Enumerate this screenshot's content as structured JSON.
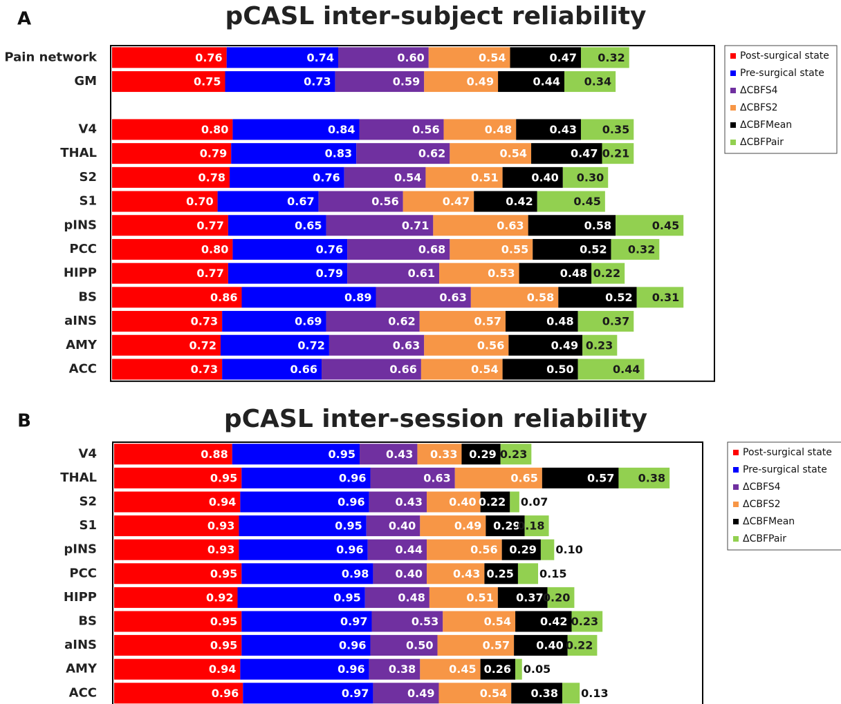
{
  "chart_data": [
    {
      "type": "stacked-bar",
      "panel_label": "A",
      "title": "pCASL inter-subject reliability",
      "categories": [
        "Pain network",
        "GM",
        null,
        "V4",
        "THAL",
        "S2",
        "S1",
        "pINS",
        "PCC",
        "HIPP",
        "BS",
        "aINS",
        "AMY",
        "ACC"
      ],
      "series": [
        {
          "name": "Post-surgical state",
          "color": "#ff0000",
          "label_color": "#ffffff",
          "values": [
            0.76,
            0.75,
            null,
            0.8,
            0.79,
            0.78,
            0.7,
            0.77,
            0.8,
            0.77,
            0.86,
            0.73,
            0.72,
            0.73
          ],
          "value_labels": [
            "0.76",
            "0.75",
            null,
            "0.80",
            "0.79",
            "0.78",
            "0.70",
            "0.77",
            "0.80",
            "0.77",
            "0.86",
            "0.73",
            "0.72",
            "0.73"
          ]
        },
        {
          "name": "Pre-surgical state",
          "color": "#0000ff",
          "label_color": "#ffffff",
          "values": [
            0.74,
            0.73,
            null,
            0.84,
            0.83,
            0.76,
            0.67,
            0.65,
            0.76,
            0.79,
            0.89,
            0.69,
            0.72,
            0.66
          ],
          "value_labels": [
            "0.74",
            "0.73",
            null,
            "0.84",
            "0.83",
            "0.76",
            "0.67",
            "0.65",
            "0.76",
            "0.79",
            "0.89",
            "0.69",
            "0.72",
            "0.66"
          ]
        },
        {
          "name": "ΔCBFS4",
          "color": "#7030a0",
          "label_color": "#ffffff",
          "values": [
            0.6,
            0.59,
            null,
            0.56,
            0.62,
            0.54,
            0.56,
            0.71,
            0.68,
            0.61,
            0.63,
            0.62,
            0.63,
            0.66
          ],
          "value_labels": [
            "0.60",
            "0.59",
            null,
            "0.56",
            "0.62",
            "0.54",
            "0.56",
            "0.71",
            "0.68",
            "0.61",
            "0.63",
            "0.62",
            "0.63",
            "0.66"
          ]
        },
        {
          "name": "ΔCBFS2",
          "color": "#f79646",
          "label_color": "#ffffff",
          "values": [
            0.54,
            0.49,
            null,
            0.48,
            0.54,
            0.51,
            0.47,
            0.63,
            0.55,
            0.53,
            0.58,
            0.57,
            0.56,
            0.54
          ],
          "value_labels": [
            "0.54",
            "0.49",
            null,
            "0.48",
            "0.54",
            "0.51",
            "0.47",
            "0.63",
            "0.55",
            "0.53",
            "0.58",
            "0.57",
            "0.56",
            "0.54"
          ]
        },
        {
          "name": "ΔCBFMean",
          "color": "#000000",
          "label_color": "#ffffff",
          "values": [
            0.47,
            0.44,
            null,
            0.43,
            0.47,
            0.4,
            0.42,
            0.58,
            0.52,
            0.48,
            0.52,
            0.48,
            0.49,
            0.5
          ],
          "value_labels": [
            "0.47",
            "0.44",
            null,
            "0.43",
            "0.47",
            "0.40",
            "0.42",
            "0.58",
            "0.52",
            "0.48",
            "0.52",
            "0.48",
            "0.49",
            "0.50"
          ]
        },
        {
          "name": "ΔCBFPair",
          "color": "#92d050",
          "label_color": "#1a1a1a",
          "values": [
            0.32,
            0.34,
            null,
            0.35,
            0.21,
            0.3,
            0.45,
            0.45,
            0.32,
            0.22,
            0.31,
            0.37,
            0.23,
            0.44
          ],
          "value_labels": [
            "0.32",
            "0.34",
            null,
            "0.35",
            "0.21",
            "0.30",
            "0.45",
            "0.45",
            "0.32",
            "0.22",
            "0.31",
            "0.37",
            "0.23",
            "0.44"
          ]
        }
      ]
    },
    {
      "type": "stacked-bar",
      "panel_label": "B",
      "title": "pCASL inter-session reliability",
      "categories": [
        "V4",
        "THAL",
        "S2",
        "S1",
        "pINS",
        "PCC",
        "HIPP",
        "BS",
        "aINS",
        "AMY",
        "ACC"
      ],
      "series": [
        {
          "name": "Post-surgical state",
          "color": "#ff0000",
          "label_color": "#ffffff",
          "values": [
            0.88,
            0.95,
            0.94,
            0.93,
            0.93,
            0.95,
            0.92,
            0.95,
            0.95,
            0.94,
            0.96
          ],
          "value_labels": [
            "0.88",
            "0.95",
            "0.94",
            "0.93",
            "0.93",
            "0.95",
            "0.92",
            "0.95",
            "0.95",
            "0.94",
            "0.96"
          ]
        },
        {
          "name": "Pre-surgical state",
          "color": "#0000ff",
          "label_color": "#ffffff",
          "values": [
            0.95,
            0.96,
            0.96,
            0.95,
            0.96,
            0.98,
            0.95,
            0.97,
            0.96,
            0.96,
            0.97
          ],
          "value_labels": [
            "0.95",
            "0.96",
            "0.96",
            "0.95",
            "0.96",
            "0.98",
            "0.95",
            "0.97",
            "0.96",
            "0.96",
            "0.97"
          ]
        },
        {
          "name": "ΔCBFS4",
          "color": "#7030a0",
          "label_color": "#ffffff",
          "values": [
            0.43,
            0.63,
            0.43,
            0.4,
            0.44,
            0.4,
            0.48,
            0.53,
            0.5,
            0.38,
            0.49
          ],
          "value_labels": [
            "0.43",
            "0.63",
            "0.43",
            "0.40",
            "0.44",
            "0.40",
            "0.48",
            "0.53",
            "0.50",
            "0.38",
            "0.49"
          ]
        },
        {
          "name": "ΔCBFS2",
          "color": "#f79646",
          "label_color": "#ffffff",
          "values": [
            0.33,
            0.65,
            0.4,
            0.49,
            0.56,
            0.43,
            0.51,
            0.54,
            0.57,
            0.45,
            0.54
          ],
          "value_labels": [
            "0.33",
            "0.65",
            "0.40",
            "0.49",
            "0.56",
            "0.43",
            "0.51",
            "0.54",
            "0.57",
            "0.45",
            "0.54"
          ]
        },
        {
          "name": "ΔCBFMean",
          "color": "#000000",
          "label_color": "#ffffff",
          "values": [
            0.29,
            0.57,
            0.22,
            0.29,
            0.29,
            0.25,
            0.37,
            0.42,
            0.4,
            0.26,
            0.38
          ],
          "value_labels": [
            "0.29",
            "0.57",
            "0.22",
            "0.29",
            "0.29",
            "0.25",
            "0.37",
            "0.42",
            "0.40",
            "0.26",
            "0.38"
          ]
        },
        {
          "name": "ΔCBFPair",
          "color": "#92d050",
          "label_color": "#1a1a1a",
          "values": [
            0.23,
            0.38,
            0.07,
            0.18,
            0.1,
            0.15,
            0.2,
            0.23,
            0.22,
            0.05,
            0.13
          ],
          "value_labels": [
            "0.23",
            "0.38",
            "0.07",
            "0.18",
            "0.10",
            "0.15",
            "0.20",
            "0.23",
            "0.22",
            "0.05",
            "0.13"
          ]
        }
      ]
    }
  ]
}
